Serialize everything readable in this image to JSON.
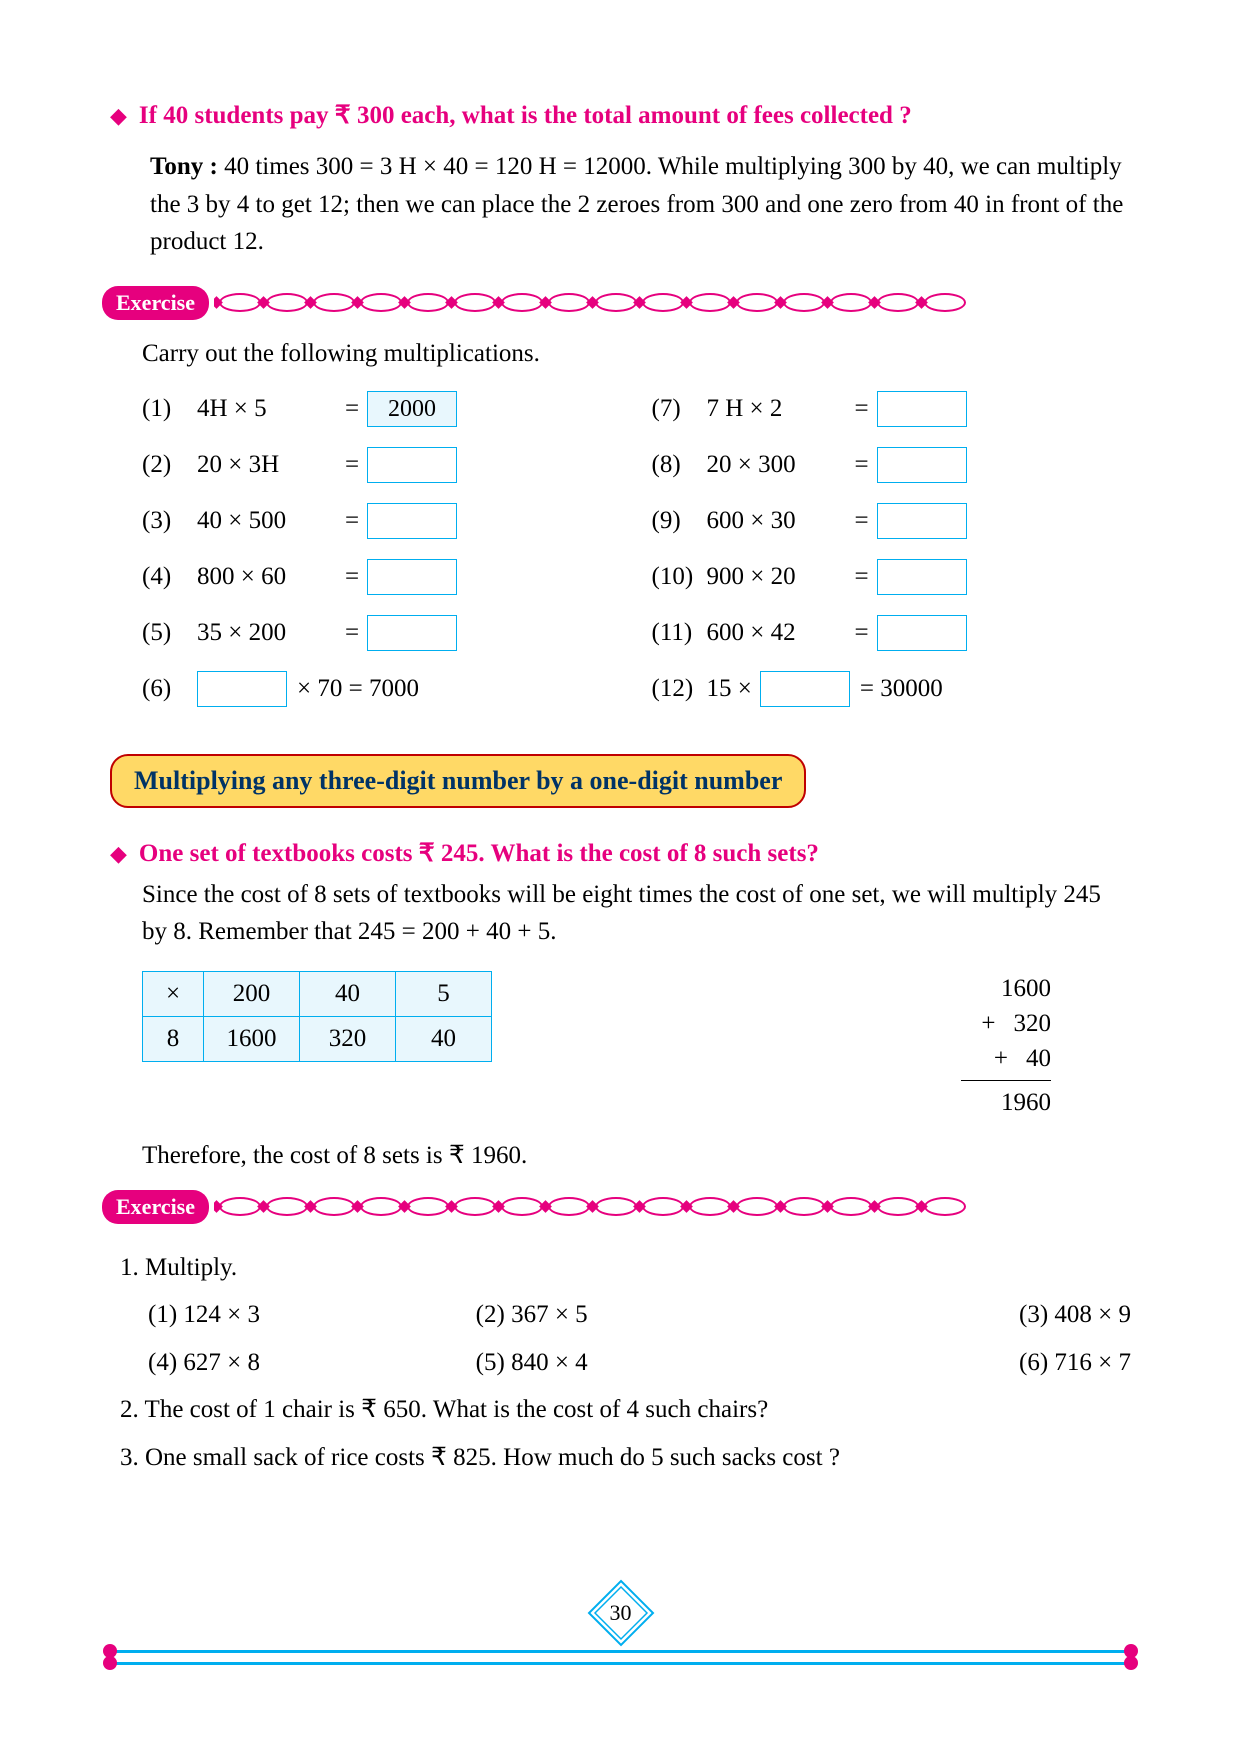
{
  "q1": {
    "text": "If 40 students pay ₹ 300 each, what is the total amount of fees collected ?"
  },
  "tony": {
    "name": "Tony :",
    "text": " 40 times 300 = 3 H × 40 = 120 H = 12000. While multiplying 300 by 40, we can multiply the 3 by 4 to get 12; then we can place the 2 zeroes from 300 and one zero from 40 in front of the product 12."
  },
  "ex_label": "Exercise",
  "intro1": "Carry out the following multiplications.",
  "left_col": [
    {
      "n": "(1)",
      "expr": "4H × 5",
      "eq": "=",
      "ans": "2000",
      "filled": true
    },
    {
      "n": "(2)",
      "expr": "20 × 3H",
      "eq": "=",
      "ans": "",
      "filled": false
    },
    {
      "n": "(3)",
      "expr": "40 × 500",
      "eq": "=",
      "ans": "",
      "filled": false
    },
    {
      "n": "(4)",
      "expr": "800 × 60",
      "eq": "=",
      "ans": "",
      "filled": false
    },
    {
      "n": "(5)",
      "expr": "35 × 200",
      "eq": "=",
      "ans": "",
      "filled": false
    }
  ],
  "left_special": {
    "n": "(6)",
    "after": "× 70 = 7000"
  },
  "right_col": [
    {
      "n": "(7)",
      "expr": "7 H × 2",
      "eq": "=",
      "ans": "",
      "filled": false
    },
    {
      "n": "(8)",
      "expr": "20 × 300",
      "eq": "=",
      "ans": "",
      "filled": false
    },
    {
      "n": "(9)",
      "expr": "600 × 30",
      "eq": "=",
      "ans": "",
      "filled": false
    },
    {
      "n": "(10)",
      "expr": "900 × 20",
      "eq": "=",
      "ans": "",
      "filled": false
    },
    {
      "n": "(11)",
      "expr": "600 × 42",
      "eq": "=",
      "ans": "",
      "filled": false
    }
  ],
  "right_special": {
    "n": "(12)",
    "pre": "15 ×",
    "after": "= 30000"
  },
  "section_title": "Multiplying any three-digit number by a one-digit number",
  "q2": {
    "text": "One set of textbooks costs ₹ 245. What is the cost of 8 such sets?"
  },
  "body2": "Since the cost of 8 sets of textbooks will be eight times the cost of one set, we will multiply 245 by 8. Remember that 245 = 200 + 40 + 5.",
  "ptable": {
    "r1": [
      "×",
      "200",
      "40",
      "5"
    ],
    "r2": [
      "8",
      "1600",
      "320",
      "40"
    ]
  },
  "vsum": {
    "a": "1600",
    "b": "320",
    "c": "40",
    "total": "1960"
  },
  "conclusion": "Therefore, the cost of 8 sets is ₹ 1960.",
  "ex2": {
    "q1_title": "1. Multiply.",
    "row1": [
      "(1) 124 × 3",
      "(2) 367 × 5",
      "(3) 408 × 9"
    ],
    "row2": [
      "(4) 627 × 8",
      "(5) 840 × 4",
      "(6) 716 × 7"
    ],
    "q2": "2.  The cost of 1 chair is ₹ 650. What is the cost of 4 such chairs?",
    "q3": "3.  One small sack of rice costs ₹ 825. How much do 5 such sacks cost ?"
  },
  "page_num": "30",
  "colors": {
    "pink": "#e6007e",
    "cyan": "#00aeef",
    "yellow": "#ffd966",
    "red_border": "#c00000",
    "blue_text": "#003366",
    "box_fill": "#e8f7fd"
  }
}
